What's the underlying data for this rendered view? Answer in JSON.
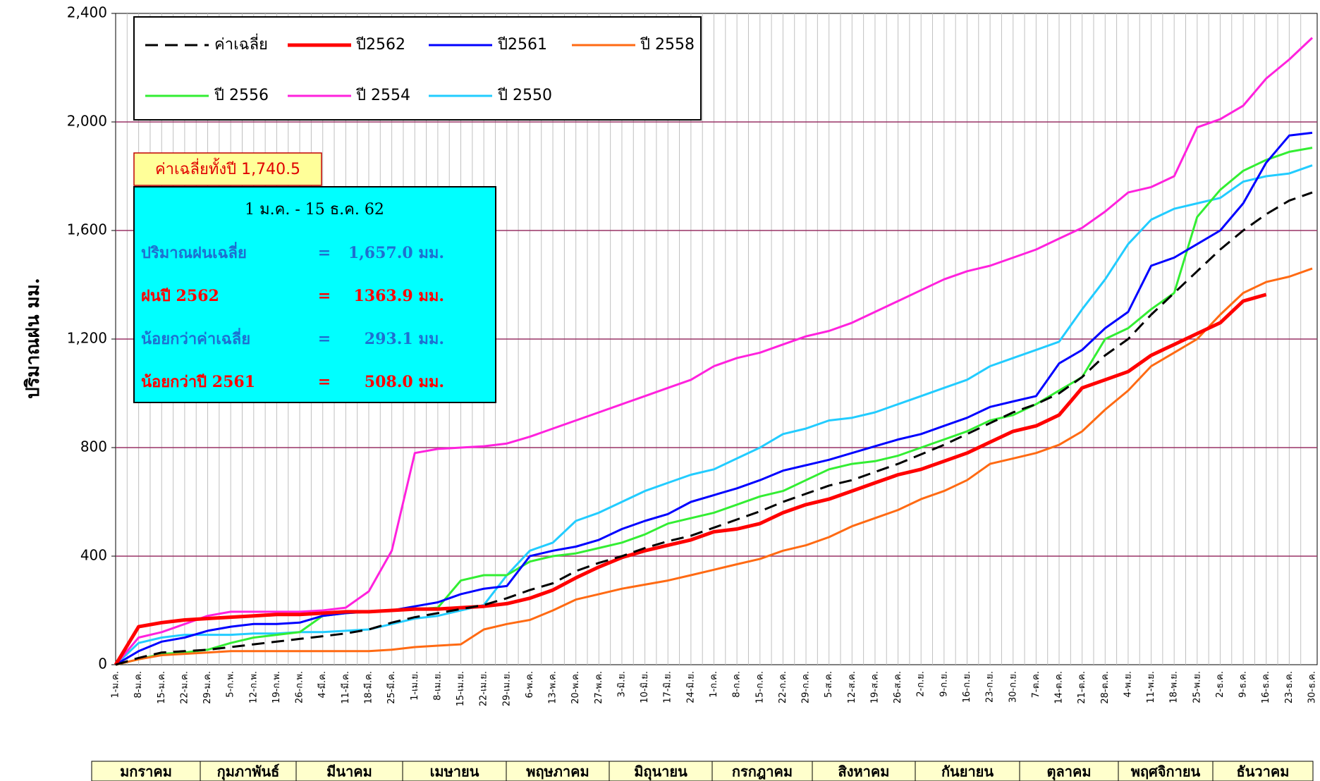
{
  "chart_data": {
    "type": "line",
    "y_label": "ปริมาณฝน มม.",
    "ylim": [
      0,
      2400
    ],
    "yticks": [
      0,
      400,
      800,
      {
        "value": 1200,
        "label": "1,200"
      },
      {
        "value": 1600,
        "label": "1,600"
      },
      {
        "value": 2000,
        "label": "2,000"
      },
      {
        "value": 2400,
        "label": "2,400"
      }
    ],
    "grid": true,
    "categories": [
      "1-ม.ค.",
      "8-ม.ค.",
      "15-ม.ค.",
      "22-ม.ค.",
      "29-ม.ค.",
      "5-ก.พ.",
      "12-ก.พ.",
      "19-ก.พ.",
      "26-ก.พ.",
      "4-มี.ค.",
      "11-มี.ค.",
      "18-มี.ค.",
      "25-มี.ค.",
      "1-เม.ย.",
      "8-เม.ย.",
      "15-เม.ย.",
      "22-เม.ย.",
      "29-เม.ย.",
      "6-พ.ค.",
      "13-พ.ค.",
      "20-พ.ค.",
      "27-พ.ค.",
      "3-มิ.ย.",
      "10-มิ.ย.",
      "17-มิ.ย.",
      "24-มิ.ย.",
      "1-ก.ค.",
      "8-ก.ค.",
      "15-ก.ค.",
      "22-ก.ค.",
      "29-ก.ค.",
      "5-ส.ค.",
      "12-ส.ค.",
      "19-ส.ค.",
      "26-ส.ค.",
      "2-ก.ย.",
      "9-ก.ย.",
      "16-ก.ย.",
      "23-ก.ย.",
      "30-ก.ย.",
      "7-ต.ค.",
      "14-ต.ค.",
      "21-ต.ค.",
      "28-ต.ค.",
      "4-พ.ย.",
      "11-พ.ย.",
      "18-พ.ย.",
      "25-พ.ย.",
      "2-ธ.ค.",
      "9-ธ.ค.",
      "16-ธ.ค.",
      "23-ธ.ค.",
      "30-ธ.ค."
    ],
    "series": [
      {
        "name": "ค่าเฉลี่ย",
        "color": "#000000",
        "dash": true,
        "width": 3,
        "values": [
          0,
          25,
          45,
          50,
          55,
          65,
          75,
          85,
          95,
          105,
          115,
          130,
          155,
          175,
          190,
          205,
          220,
          245,
          275,
          300,
          345,
          375,
          400,
          430,
          455,
          475,
          505,
          535,
          565,
          600,
          630,
          660,
          680,
          710,
          740,
          775,
          810,
          850,
          890,
          930,
          960,
          1000,
          1060,
          1140,
          1200,
          1290,
          1370,
          1450,
          1530,
          1600,
          1660,
          1710,
          1740
        ]
      },
      {
        "name": "ปี2562",
        "color": "#ff0000",
        "width": 5,
        "values": [
          0,
          140,
          155,
          165,
          170,
          175,
          180,
          185,
          185,
          190,
          195,
          195,
          200,
          205,
          205,
          210,
          215,
          225,
          245,
          275,
          320,
          360,
          395,
          420,
          440,
          460,
          490,
          500,
          520,
          560,
          590,
          610,
          640,
          670,
          700,
          720,
          750,
          780,
          820,
          860,
          880,
          920,
          1020,
          1050,
          1080,
          1140,
          1180,
          1220,
          1260,
          1340,
          1364,
          null,
          null
        ]
      },
      {
        "name": "ปี2561",
        "color": "#0000ff",
        "width": 3,
        "values": [
          0,
          50,
          85,
          100,
          125,
          140,
          150,
          150,
          155,
          180,
          190,
          195,
          200,
          215,
          230,
          260,
          280,
          290,
          400,
          420,
          435,
          460,
          500,
          530,
          555,
          600,
          625,
          650,
          680,
          715,
          735,
          755,
          780,
          805,
          830,
          850,
          880,
          910,
          950,
          970,
          990,
          1110,
          1160,
          1240,
          1300,
          1470,
          1500,
          1550,
          1600,
          1700,
          1850,
          1950,
          1960
        ]
      },
      {
        "name": "ปี 2558",
        "color": "#ff6a13",
        "width": 3,
        "values": [
          0,
          20,
          35,
          40,
          45,
          50,
          50,
          50,
          50,
          50,
          50,
          50,
          55,
          65,
          70,
          75,
          130,
          150,
          165,
          200,
          240,
          260,
          280,
          295,
          310,
          330,
          350,
          370,
          390,
          420,
          440,
          470,
          510,
          540,
          570,
          610,
          640,
          680,
          740,
          760,
          780,
          810,
          860,
          940,
          1010,
          1100,
          1150,
          1200,
          1290,
          1370,
          1410,
          1430,
          1460
        ]
      },
      {
        "name": "ปี 2556",
        "color": "#33ee33",
        "width": 3,
        "values": [
          0,
          20,
          40,
          45,
          55,
          80,
          100,
          110,
          120,
          180,
          190,
          195,
          200,
          205,
          210,
          310,
          330,
          330,
          380,
          400,
          410,
          430,
          450,
          480,
          520,
          540,
          560,
          590,
          620,
          640,
          680,
          720,
          740,
          750,
          770,
          800,
          830,
          860,
          900,
          920,
          960,
          1010,
          1060,
          1200,
          1240,
          1310,
          1370,
          1650,
          1750,
          1820,
          1860,
          1890,
          1905
        ]
      },
      {
        "name": "ปี 2554",
        "color": "#ff22dd",
        "width": 3,
        "values": [
          0,
          100,
          120,
          150,
          180,
          195,
          195,
          195,
          195,
          200,
          210,
          270,
          420,
          780,
          795,
          800,
          805,
          815,
          840,
          870,
          900,
          930,
          960,
          990,
          1020,
          1050,
          1100,
          1130,
          1150,
          1180,
          1210,
          1230,
          1260,
          1300,
          1340,
          1380,
          1420,
          1450,
          1470,
          1500,
          1530,
          1570,
          1610,
          1670,
          1740,
          1760,
          1800,
          1980,
          2010,
          2060,
          2160,
          2230,
          2310
        ]
      },
      {
        "name": "ปี 2550",
        "color": "#22ccff",
        "width": 3,
        "values": [
          0,
          80,
          100,
          110,
          110,
          110,
          115,
          115,
          120,
          120,
          125,
          130,
          150,
          170,
          180,
          200,
          220,
          330,
          420,
          450,
          530,
          560,
          600,
          640,
          670,
          700,
          720,
          760,
          800,
          850,
          870,
          900,
          910,
          930,
          960,
          990,
          1020,
          1050,
          1100,
          1130,
          1160,
          1190,
          1310,
          1420,
          1550,
          1640,
          1680,
          1700,
          1720,
          1780,
          1800,
          1810,
          1840
        ]
      }
    ],
    "annual_average": "ค่าเฉลี่ยทั้งปี 1,740.5",
    "summary": {
      "title": "1 ม.ค. -  15 ธ.ค. 62",
      "rows": [
        {
          "color": "#1e6fd0",
          "cells": [
            "ปริมาณฝนเฉลี่ย",
            "=",
            "1,657.0 มม."
          ]
        },
        {
          "color": "#ff0000",
          "cells": [
            "ฝนปี 2562",
            "=",
            "1363.9 มม."
          ]
        },
        {
          "color": "#1e6fd0",
          "cells": [
            "น้อยกว่าค่าเฉลี่ย",
            "=",
            "293.1 มม."
          ]
        },
        {
          "color": "#ff0000",
          "cells": [
            "น้อยกว่าปี 2561",
            "=",
            "508.0 มม."
          ]
        }
      ]
    },
    "months": [
      "มกราคม",
      "กุมภาพันธ์",
      "มีนาคม",
      "เมษายน",
      "พฤษภาคม",
      "มิถุนายน",
      "กรกฎาคม",
      "สิงหาคม",
      "กันยายน",
      "ตุลาคม",
      "พฤศจิกายน",
      "ธันวาคม"
    ]
  }
}
